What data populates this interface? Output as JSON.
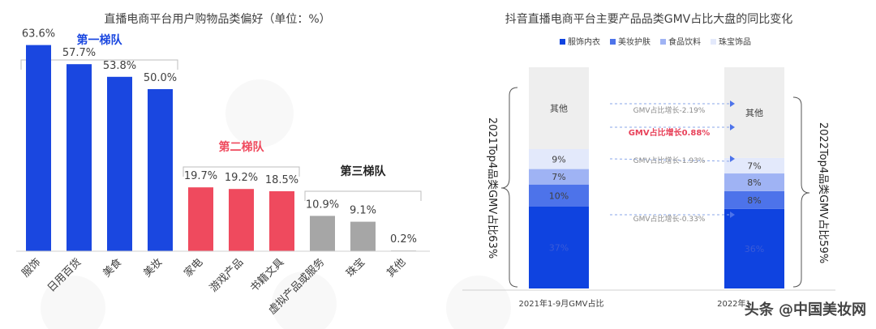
{
  "left_chart": {
    "title": "直播电商平台用户购物品类偏好（单位：%）",
    "tiers": [
      "第一梯队",
      "第二梯队",
      "第三梯队"
    ],
    "tier_colors": [
      "#1a47e0",
      "#ef4a5e",
      "#a6a6a6"
    ]
  },
  "right_chart": {
    "title": "抖音直播电商平台主要产品品类GMV占比大盘的同比变化",
    "legend": [
      "服饰内衣",
      "美妆护肤",
      "食品饮料",
      "珠宝饰品"
    ],
    "colors": [
      "#0f43e0",
      "#4d73ea",
      "#9fb3f4",
      "#e3e9fb",
      "#eeeeee"
    ],
    "other_label": "其他",
    "col1_label": "2021年1-9月GMV占比",
    "col2_label_partial": "2022年1",
    "left_side_label": "2021Top4品类GMV占比63%",
    "right_side_label": "2022Top4品类GMV占比59%",
    "changes": [
      "GMV占比增长-2.19%",
      "GMV占比增长0.88%",
      "GMV占比增长-1.93%",
      "GMV占比增长-0.33%"
    ],
    "bar1_labels": [
      "9%",
      "7%",
      "10%",
      "37%"
    ],
    "bar2_labels": [
      "7%",
      "8%",
      "8%",
      "36%"
    ]
  },
  "watermark": "头条 @中国美妆网",
  "chart_data": [
    {
      "type": "bar",
      "title": "直播电商平台用户购物品类偏好（单位：%）",
      "categories": [
        "服饰",
        "日用百货",
        "美食",
        "美妆",
        "家电",
        "游戏产品",
        "书籍文具",
        "虚拟产品或服务",
        "珠宝",
        "其他"
      ],
      "values": [
        63.6,
        57.7,
        53.8,
        50.0,
        19.7,
        19.2,
        18.5,
        10.9,
        9.1,
        0.2
      ],
      "value_labels": [
        "63.6%",
        "57.7%",
        "53.8%",
        "50.0%",
        "19.7%",
        "19.2%",
        "18.5%",
        "10.9%",
        "9.1%",
        "0.2%"
      ],
      "tier_index": [
        0,
        0,
        0,
        0,
        1,
        1,
        1,
        2,
        2,
        2
      ],
      "ylim": [
        0,
        70
      ],
      "grid": false
    },
    {
      "type": "bar",
      "stacked": true,
      "title": "抖音直播电商平台主要产品品类GMV占比大盘的同比变化",
      "categories": [
        "2021年1-9月GMV占比",
        "2022年1"
      ],
      "series": [
        {
          "name": "服饰内衣",
          "values": [
            37,
            36
          ]
        },
        {
          "name": "美妆护肤",
          "values": [
            10,
            8
          ]
        },
        {
          "name": "食品饮料",
          "values": [
            7,
            8
          ]
        },
        {
          "name": "珠宝饰品",
          "values": [
            9,
            7
          ]
        },
        {
          "name": "其他",
          "values": [
            37,
            41
          ]
        }
      ],
      "ylim": [
        0,
        100
      ],
      "legend": "top"
    }
  ]
}
